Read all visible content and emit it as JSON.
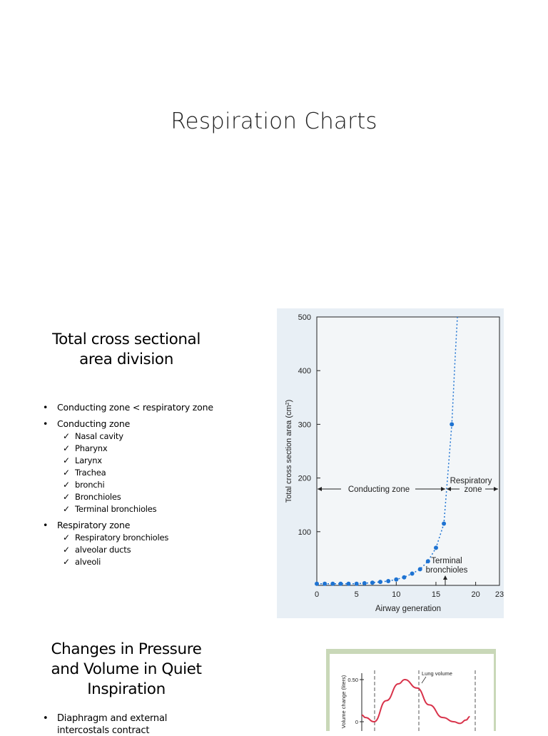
{
  "slide_title": "Respiration Charts",
  "section1": {
    "heading_line1": "Total cross sectional",
    "heading_line2": "area division",
    "bullets": [
      {
        "text": "Conducting zone < respiratory zone",
        "subs": []
      },
      {
        "text": "Conducting zone",
        "subs": [
          "Nasal cavity",
          "Pharynx",
          "Larynx",
          "Trachea",
          "bronchi",
          "Bronchioles",
          "Terminal bronchioles"
        ]
      },
      {
        "text": "Respiratory zone",
        "subs": [
          "Respiratory bronchioles",
          "alveolar ducts",
          "alveoli"
        ]
      }
    ]
  },
  "section2": {
    "heading_line1": "Changes in Pressure",
    "heading_line2": "and Volume in Quiet",
    "heading_line3": "Inspiration",
    "bullets": [
      {
        "text": "Diaphragm and external"
      },
      {
        "text": "intercostals contract"
      }
    ]
  },
  "chart_data": [
    {
      "type": "scatter",
      "xlabel": "Airway generation",
      "ylabel": "Total cross section area (cm",
      "ylabel_sup": "2",
      "ylabel_close": ")",
      "xlim": [
        0,
        23
      ],
      "ylim": [
        0,
        500
      ],
      "x_ticks": [
        0,
        5,
        10,
        15,
        20,
        23
      ],
      "y_ticks": [
        100,
        200,
        300,
        400,
        500
      ],
      "x": [
        0,
        1,
        2,
        3,
        4,
        5,
        6,
        7,
        8,
        9,
        10,
        11,
        12,
        13,
        14,
        15,
        16,
        17
      ],
      "y": [
        3,
        3,
        3,
        3,
        3,
        3,
        4,
        5,
        6.5,
        8,
        11,
        15,
        22,
        30,
        45,
        70,
        115,
        300
      ],
      "annotations": {
        "conducting_zone": "Conducting zone",
        "respiratory_zone_line1": "Respiratory",
        "respiratory_zone_line2": "zone",
        "terminal_line1": "Terminal",
        "terminal_line2": "bronchioles"
      },
      "point_color": "#1e73d2"
    },
    {
      "type": "line",
      "ylabel": "Volume change (liters)",
      "y_ticks": [
        "0.50",
        "0"
      ],
      "ylim": [
        0,
        0.5
      ],
      "annotation": "Lung volume",
      "line_color": "#d8324a",
      "x": [
        0,
        0.03,
        0.1,
        0.2,
        0.3,
        0.35,
        0.45,
        0.55,
        0.66,
        0.75,
        0.8,
        0.85,
        0.88
      ],
      "y": [
        0.08,
        0.05,
        0.0,
        0.25,
        0.45,
        0.5,
        0.4,
        0.2,
        0.05,
        0.0,
        -0.02,
        0.02,
        0.06
      ]
    }
  ]
}
